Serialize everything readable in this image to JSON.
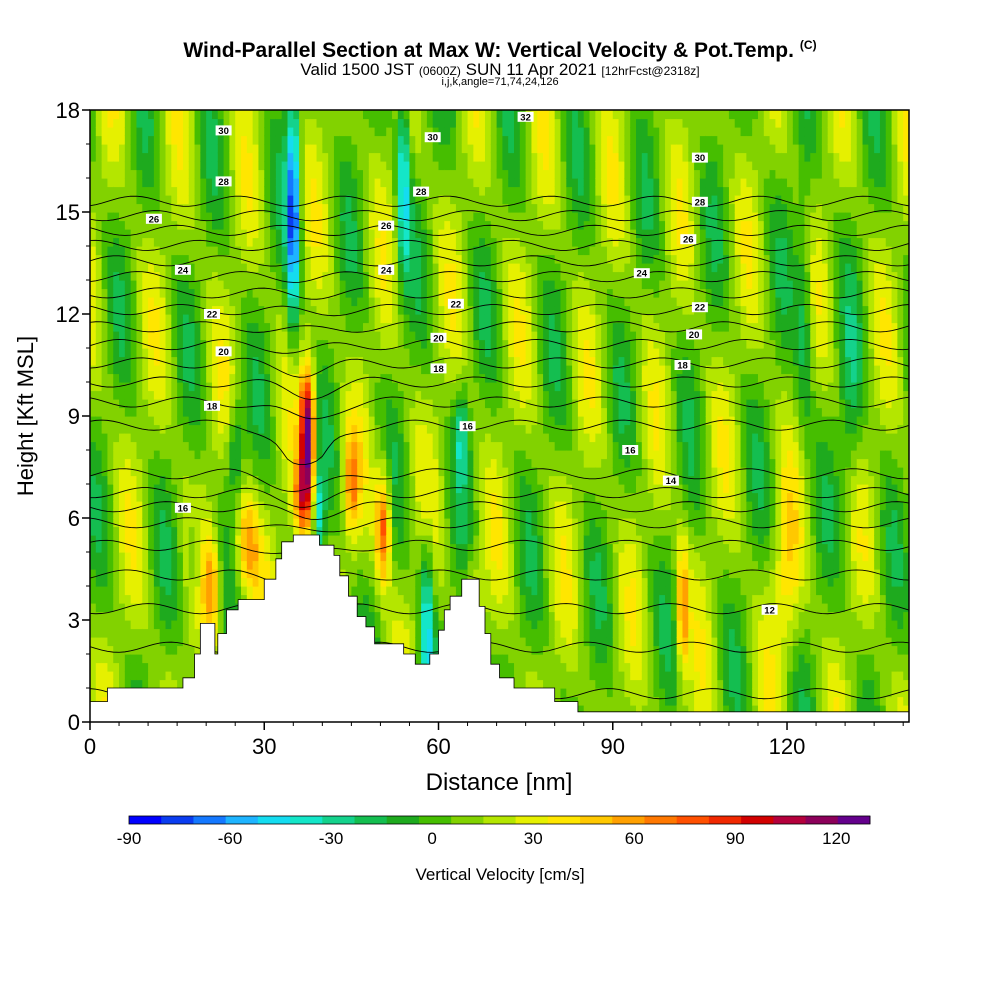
{
  "chart_data": {
    "type": "heatmap",
    "title": "Wind-Parallel Section at Max W: Vertical Velocity & Pot.Temp.",
    "title_suffix": "(C)",
    "subtitle": {
      "valid": "Valid 1500 JST",
      "zulu": "(0600Z)",
      "date": "SUN 11 Apr 2021",
      "forecast": "[12hrFcst@2318z]"
    },
    "subtitle2": "i,j,k,angle=71,74,24,126",
    "xlabel": "Distance [nm]",
    "ylabel": "Height [Kft MSL]",
    "xlim": [
      0,
      141
    ],
    "ylim": [
      0,
      18
    ],
    "x_ticks": [
      0,
      30,
      60,
      90,
      120
    ],
    "y_ticks": [
      0,
      3,
      6,
      9,
      12,
      15,
      18
    ],
    "colorbar": {
      "label": "Vertical Velocity [cm/s]",
      "range": [
        -90,
        130
      ],
      "ticks": [
        -90,
        -60,
        -30,
        0,
        30,
        60,
        90,
        120
      ],
      "colors": [
        "#0000ff",
        "#0a3cf0",
        "#1478ff",
        "#1eb4ff",
        "#14dcf0",
        "#14e6c8",
        "#14d28c",
        "#14be50",
        "#1eaa1e",
        "#46be00",
        "#82d200",
        "#b4e600",
        "#e6f000",
        "#ffe600",
        "#ffc800",
        "#ffa000",
        "#ff7800",
        "#ff5000",
        "#f02800",
        "#d20000",
        "#b4003c",
        "#8c005a",
        "#64008c"
      ]
    },
    "theta_contour_labels": [
      {
        "x": 23,
        "y": 17.4,
        "v": "30"
      },
      {
        "x": 59,
        "y": 17.2,
        "v": "30"
      },
      {
        "x": 75,
        "y": 17.8,
        "v": "32"
      },
      {
        "x": 105,
        "y": 16.6,
        "v": "30"
      },
      {
        "x": 23,
        "y": 15.9,
        "v": "28"
      },
      {
        "x": 57,
        "y": 15.6,
        "v": "28"
      },
      {
        "x": 105,
        "y": 15.3,
        "v": "28"
      },
      {
        "x": 11,
        "y": 14.8,
        "v": "26"
      },
      {
        "x": 51,
        "y": 14.6,
        "v": "26"
      },
      {
        "x": 103,
        "y": 14.2,
        "v": "26"
      },
      {
        "x": 16,
        "y": 13.3,
        "v": "24"
      },
      {
        "x": 51,
        "y": 13.3,
        "v": "24"
      },
      {
        "x": 95,
        "y": 13.2,
        "v": "24"
      },
      {
        "x": 21,
        "y": 12.0,
        "v": "22"
      },
      {
        "x": 63,
        "y": 12.3,
        "v": "22"
      },
      {
        "x": 105,
        "y": 12.2,
        "v": "22"
      },
      {
        "x": 23,
        "y": 10.9,
        "v": "20"
      },
      {
        "x": 60,
        "y": 11.3,
        "v": "20"
      },
      {
        "x": 104,
        "y": 11.4,
        "v": "20"
      },
      {
        "x": 60,
        "y": 10.4,
        "v": "18"
      },
      {
        "x": 102,
        "y": 10.5,
        "v": "18"
      },
      {
        "x": 21,
        "y": 9.3,
        "v": "18"
      },
      {
        "x": 65,
        "y": 8.7,
        "v": "16"
      },
      {
        "x": 93,
        "y": 8.0,
        "v": "16"
      },
      {
        "x": 16,
        "y": 6.3,
        "v": "16"
      },
      {
        "x": 100,
        "y": 7.1,
        "v": "14"
      },
      {
        "x": 117,
        "y": 3.3,
        "v": "12"
      }
    ]
  }
}
